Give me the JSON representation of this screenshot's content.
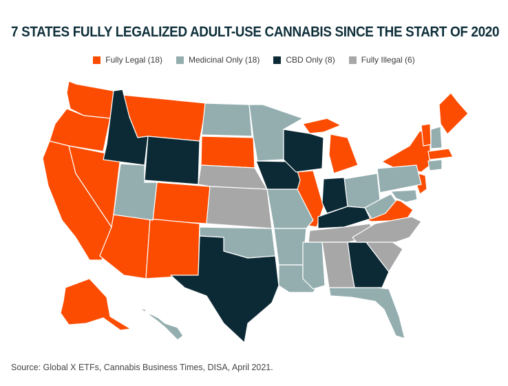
{
  "title": "7 STATES FULLY LEGALIZED ADULT-USE CANNABIS SINCE THE START OF 2020",
  "legend": [
    {
      "label": "Fully Legal (18)",
      "color": "#fc4c02"
    },
    {
      "label": "Medicinal Only (18)",
      "color": "#94aeb0"
    },
    {
      "label": "CBD Only (8)",
      "color": "#0c2a35"
    },
    {
      "label": "Fully Illegal (6)",
      "color": "#a7a7a7"
    }
  ],
  "colors": {
    "legal": "#fc4c02",
    "medicinal": "#94aeb0",
    "cbd": "#0c2a35",
    "illegal": "#a7a7a7"
  },
  "source": "Source: Global X ETFs, Cannabis Business Times, DISA, April 2021."
}
